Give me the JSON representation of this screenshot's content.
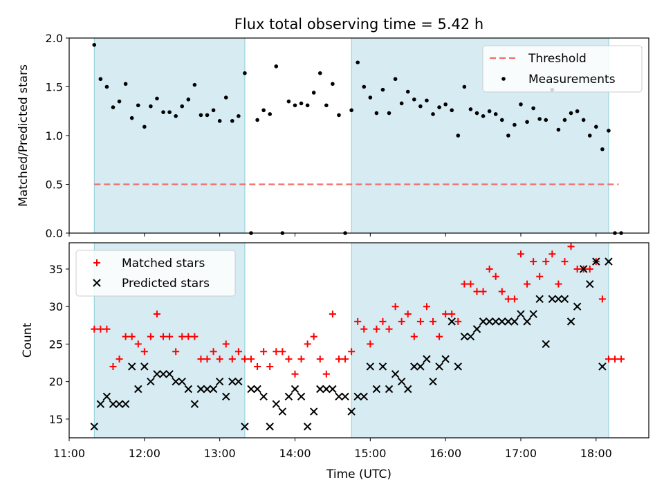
{
  "figure": {
    "title": "Flux total observing time = 5.42 h"
  },
  "chart_data": [
    {
      "type": "scatter",
      "title": "Flux total observing time = 5.42 h",
      "xlabel": "",
      "ylabel": "Matched/Predicted stars",
      "xlim": [
        "11:00",
        "18:42"
      ],
      "ylim": [
        0,
        2.0
      ],
      "yticks": [
        0.0,
        0.5,
        1.0,
        1.5,
        2.0
      ],
      "ytick_labels": [
        "0.0",
        "0.5",
        "1.0",
        "1.5",
        "2.0"
      ],
      "xticks": [
        "11:00",
        "12:00",
        "13:00",
        "14:00",
        "15:00",
        "16:00",
        "17:00",
        "18:00"
      ],
      "shaded_intervals": [
        [
          "11:20",
          "13:20"
        ],
        [
          "14:45",
          "18:10"
        ]
      ],
      "legend": {
        "position": "upper right",
        "entries": [
          "Threshold",
          "Measurements"
        ]
      },
      "threshold": {
        "name": "Threshold",
        "value": 0.5,
        "x_range": [
          "11:20",
          "18:18"
        ],
        "color": "#f36b6b",
        "style": "dashed"
      },
      "series": [
        {
          "name": "Measurements",
          "marker": "dot",
          "color": "#000000",
          "x": [
            "11:20",
            "11:25",
            "11:30",
            "11:35",
            "11:40",
            "11:45",
            "11:50",
            "11:55",
            "12:00",
            "12:05",
            "12:10",
            "12:15",
            "12:20",
            "12:25",
            "12:30",
            "12:35",
            "12:40",
            "12:45",
            "12:50",
            "12:55",
            "13:00",
            "13:05",
            "13:10",
            "13:15",
            "13:20",
            "13:25",
            "13:30",
            "13:35",
            "13:40",
            "13:45",
            "13:50",
            "13:55",
            "14:00",
            "14:05",
            "14:10",
            "14:15",
            "14:20",
            "14:25",
            "14:30",
            "14:35",
            "14:40",
            "14:45",
            "14:50",
            "14:55",
            "15:00",
            "15:05",
            "15:10",
            "15:15",
            "15:20",
            "15:25",
            "15:30",
            "15:35",
            "15:40",
            "15:45",
            "15:50",
            "15:55",
            "16:00",
            "16:05",
            "16:10",
            "16:15",
            "16:20",
            "16:25",
            "16:30",
            "16:35",
            "16:40",
            "16:45",
            "16:50",
            "16:55",
            "17:00",
            "17:05",
            "17:10",
            "17:15",
            "17:20",
            "17:25",
            "17:30",
            "17:35",
            "17:40",
            "17:45",
            "17:50",
            "17:55",
            "18:00",
            "18:05",
            "18:10",
            "18:15",
            "18:20"
          ],
          "y": [
            1.93,
            1.58,
            1.5,
            1.29,
            1.35,
            1.53,
            1.18,
            1.31,
            1.09,
            1.3,
            1.38,
            1.24,
            1.24,
            1.2,
            1.3,
            1.37,
            1.52,
            1.21,
            1.21,
            1.26,
            1.15,
            1.39,
            1.15,
            1.2,
            1.64,
            0.0,
            1.16,
            1.26,
            1.22,
            1.71,
            0.0,
            1.35,
            1.31,
            1.33,
            1.31,
            1.44,
            1.64,
            1.31,
            1.53,
            1.21,
            0.0,
            1.26,
            1.75,
            1.5,
            1.39,
            1.23,
            1.47,
            1.23,
            1.58,
            1.33,
            1.45,
            1.37,
            1.3,
            1.36,
            1.22,
            1.29,
            1.32,
            1.26,
            1.0,
            1.5,
            1.27,
            1.23,
            1.2,
            1.25,
            1.22,
            1.16,
            1.0,
            1.11,
            1.32,
            1.14,
            1.28,
            1.17,
            1.16,
            1.47,
            1.06,
            1.16,
            1.23,
            1.25,
            1.16,
            1.0,
            1.09,
            0.86,
            1.05,
            0.0,
            0.0
          ]
        }
      ]
    },
    {
      "type": "scatter",
      "title": "",
      "xlabel": "Time (UTC)",
      "ylabel": "Count",
      "xlim": [
        "11:00",
        "18:42"
      ],
      "ylim": [
        12.5,
        38.5
      ],
      "yticks": [
        15,
        20,
        25,
        30,
        35
      ],
      "ytick_labels": [
        "15",
        "20",
        "25",
        "30",
        "35"
      ],
      "xticks": [
        "11:00",
        "12:00",
        "13:00",
        "14:00",
        "15:00",
        "16:00",
        "17:00",
        "18:00"
      ],
      "shaded_intervals": [
        [
          "11:20",
          "13:20"
        ],
        [
          "14:45",
          "18:10"
        ]
      ],
      "legend": {
        "position": "upper left",
        "entries": [
          "Matched stars",
          "Predicted stars"
        ]
      },
      "series": [
        {
          "name": "Matched stars",
          "marker": "plus",
          "color": "#ff0000",
          "x": [
            "11:20",
            "11:25",
            "11:30",
            "11:35",
            "11:40",
            "11:45",
            "11:50",
            "11:55",
            "12:00",
            "12:05",
            "12:10",
            "12:15",
            "12:20",
            "12:25",
            "12:30",
            "12:35",
            "12:40",
            "12:45",
            "12:50",
            "12:55",
            "13:00",
            "13:05",
            "13:10",
            "13:15",
            "13:20",
            "13:25",
            "13:30",
            "13:35",
            "13:40",
            "13:45",
            "13:50",
            "13:55",
            "14:00",
            "14:05",
            "14:10",
            "14:15",
            "14:20",
            "14:25",
            "14:30",
            "14:35",
            "14:40",
            "14:45",
            "14:50",
            "14:55",
            "15:00",
            "15:05",
            "15:10",
            "15:15",
            "15:20",
            "15:25",
            "15:30",
            "15:35",
            "15:40",
            "15:45",
            "15:50",
            "15:55",
            "16:00",
            "16:05",
            "16:10",
            "16:15",
            "16:20",
            "16:25",
            "16:30",
            "16:35",
            "16:40",
            "16:45",
            "16:50",
            "16:55",
            "17:00",
            "17:05",
            "17:10",
            "17:15",
            "17:20",
            "17:25",
            "17:30",
            "17:35",
            "17:40",
            "17:45",
            "17:50",
            "17:55",
            "18:00",
            "18:05",
            "18:10",
            "18:15",
            "18:20"
          ],
          "y": [
            27,
            27,
            27,
            22,
            23,
            26,
            26,
            25,
            24,
            26,
            29,
            26,
            26,
            24,
            26,
            26,
            26,
            23,
            23,
            24,
            23,
            25,
            23,
            24,
            23,
            23,
            22,
            24,
            22,
            24,
            24,
            23,
            21,
            23,
            25,
            26,
            23,
            21,
            29,
            23,
            23,
            24,
            28,
            27,
            25,
            27,
            28,
            27,
            30,
            28,
            29,
            26,
            28,
            30,
            28,
            26,
            29,
            29,
            28,
            33,
            33,
            32,
            32,
            35,
            34,
            32,
            31,
            31,
            37,
            33,
            36,
            34,
            36,
            37,
            33,
            36,
            38,
            35,
            35,
            35,
            36,
            31,
            23,
            23,
            23
          ]
        },
        {
          "name": "Predicted stars",
          "marker": "x",
          "color": "#000000",
          "x": [
            "11:20",
            "11:25",
            "11:30",
            "11:35",
            "11:40",
            "11:45",
            "11:50",
            "11:55",
            "12:00",
            "12:05",
            "12:10",
            "12:15",
            "12:20",
            "12:25",
            "12:30",
            "12:35",
            "12:40",
            "12:45",
            "12:50",
            "12:55",
            "13:00",
            "13:05",
            "13:10",
            "13:15",
            "13:20",
            "13:25",
            "13:30",
            "13:35",
            "13:40",
            "13:45",
            "13:50",
            "13:55",
            "14:00",
            "14:05",
            "14:10",
            "14:15",
            "14:20",
            "14:25",
            "14:30",
            "14:35",
            "14:40",
            "14:45",
            "14:50",
            "14:55",
            "15:00",
            "15:05",
            "15:10",
            "15:15",
            "15:20",
            "15:25",
            "15:30",
            "15:35",
            "15:40",
            "15:45",
            "15:50",
            "15:55",
            "16:00",
            "16:05",
            "16:10",
            "16:15",
            "16:20",
            "16:25",
            "16:30",
            "16:35",
            "16:40",
            "16:45",
            "16:50",
            "16:55",
            "17:00",
            "17:05",
            "17:10",
            "17:15",
            "17:20",
            "17:25",
            "17:30",
            "17:35",
            "17:40",
            "17:45",
            "17:50",
            "17:55",
            "18:00",
            "18:05",
            "18:10"
          ],
          "y": [
            14,
            17,
            18,
            17,
            17,
            17,
            22,
            19,
            22,
            20,
            21,
            21,
            21,
            20,
            20,
            19,
            17,
            19,
            19,
            19,
            20,
            18,
            20,
            20,
            14,
            19,
            19,
            18,
            14,
            17,
            16,
            18,
            19,
            18,
            14,
            16,
            19,
            19,
            19,
            18,
            18,
            16,
            18,
            18,
            22,
            19,
            22,
            19,
            21,
            20,
            19,
            22,
            22,
            23,
            20,
            22,
            23,
            28,
            22,
            26,
            26,
            27,
            28,
            28,
            28,
            28,
            28,
            28,
            29,
            28,
            29,
            31,
            25,
            31,
            31,
            31,
            28,
            30,
            35,
            33,
            36,
            22,
            36
          ]
        }
      ]
    }
  ]
}
